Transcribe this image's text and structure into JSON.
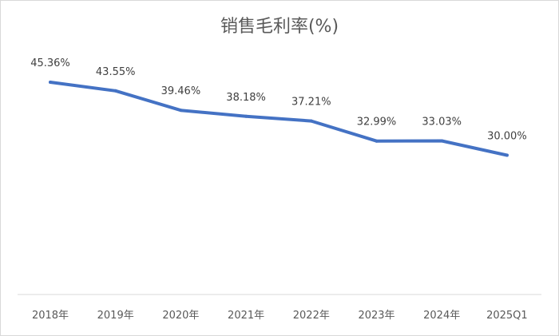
{
  "chart_data": {
    "type": "line",
    "title": "销售毛利率(%)",
    "xlabel": "",
    "ylabel": "",
    "categories": [
      "2018年",
      "2019年",
      "2020年",
      "2021年",
      "2022年",
      "2023年",
      "2024年",
      "2025Q1"
    ],
    "series": [
      {
        "values": [
          45.36,
          43.55,
          39.46,
          38.18,
          37.21,
          32.99,
          33.03,
          30.0
        ],
        "labels": [
          "45.36%",
          "43.55%",
          "39.46%",
          "38.18%",
          "37.21%",
          "32.99%",
          "33.03%",
          "30.00%"
        ],
        "color": "#4472c4"
      }
    ],
    "grid": false,
    "legend": "none"
  }
}
